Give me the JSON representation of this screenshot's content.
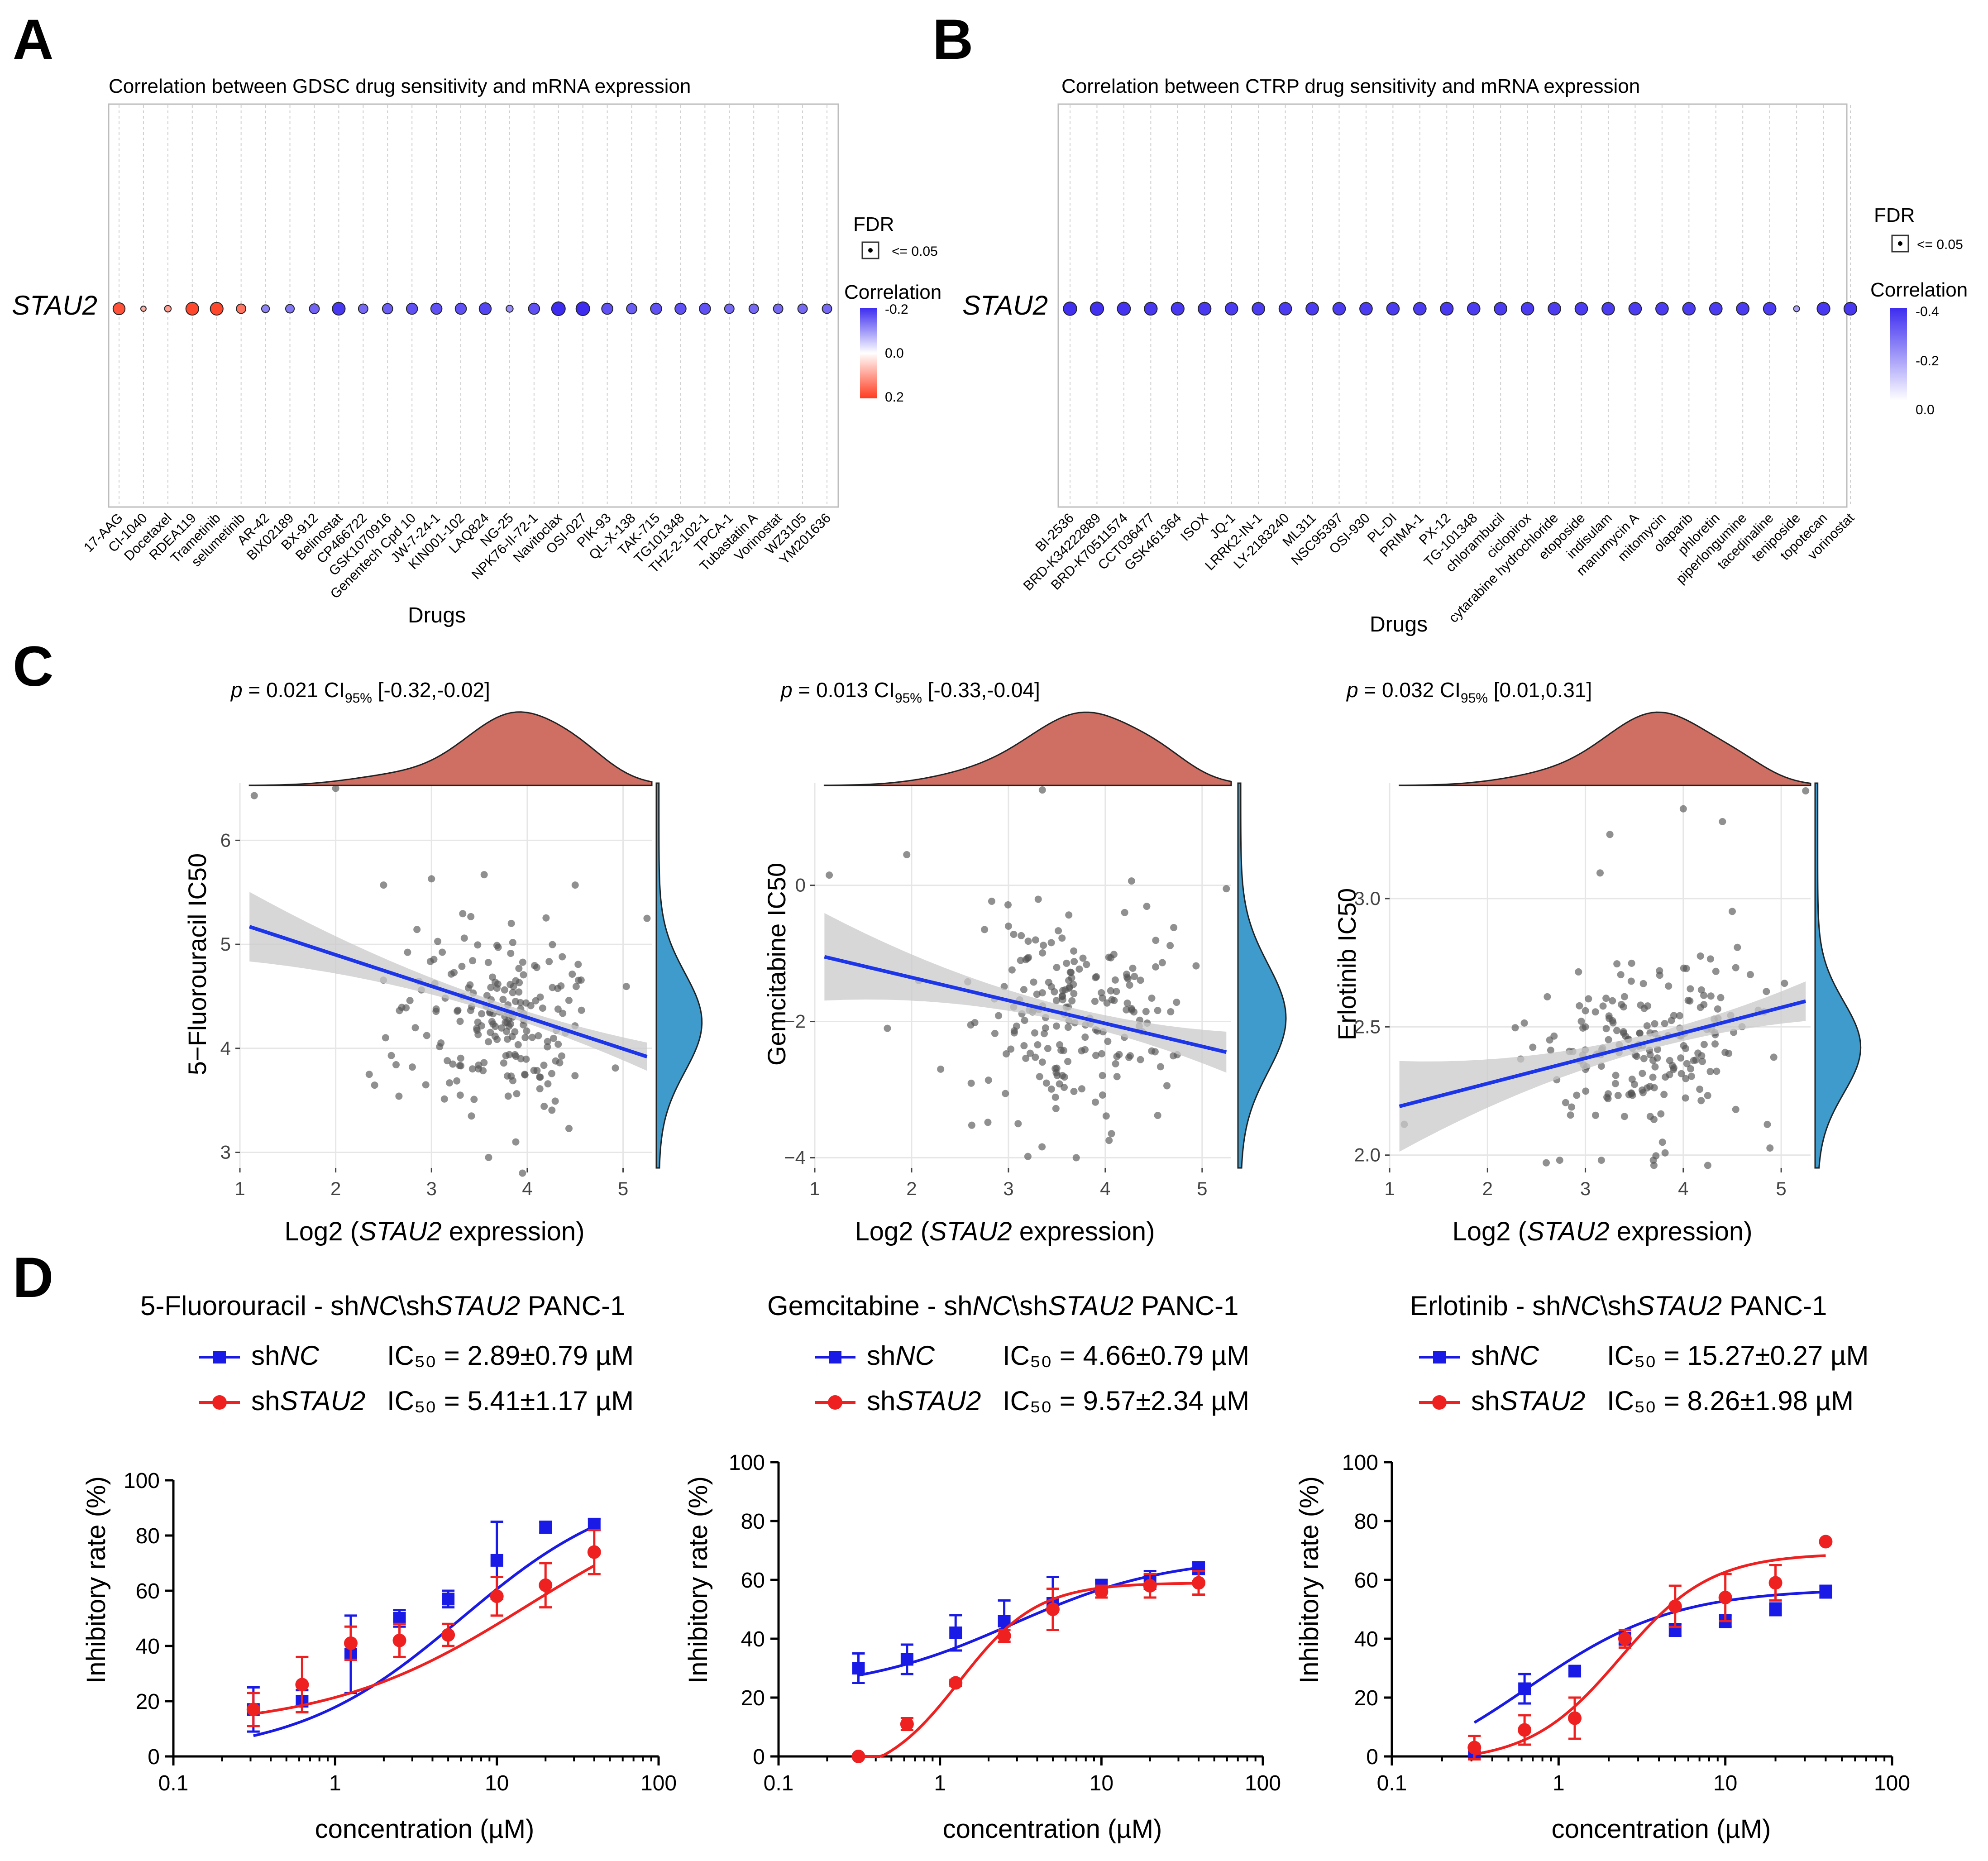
{
  "colors": {
    "blue": "#1a1ae6",
    "red": "#ef2020",
    "corr_pos": "#ff3b1f",
    "corr_neg": "#3d2cf0",
    "ridge": "#cf6e63",
    "ridge_side": "#3e9bcb",
    "fit_line": "#1d35e8",
    "band": "#c9c9c9",
    "grid": "#e6e6e6",
    "point": "#555555"
  },
  "panel_labels": [
    "A",
    "B",
    "C",
    "D"
  ],
  "panelA": {
    "title": "Correlation between GDSC drug sensitivity and mRNA expression",
    "gene": "STAU2",
    "xlabel": "Drugs",
    "fdr_title": "FDR",
    "fdr_label": "<= 0.05",
    "corr_title": "Correlation",
    "corr_ticks": [
      "-0.2",
      "0.0",
      "0.2"
    ],
    "drugs": [
      "17-AAG",
      "CI-1040",
      "Docetaxel",
      "RDEA119",
      "Trametinib",
      "selumetinib",
      "AR-42",
      "BIX02189",
      "BX-912",
      "Belinostat",
      "CP466722",
      "GSK1070916",
      "Genentech Cpd 10",
      "JW-7-24-1",
      "KIN001-102",
      "LAQ824",
      "NG-25",
      "NPK76-II-72-1",
      "Navitoclax",
      "OSI-027",
      "PIK-93",
      "QL-X-138",
      "TAK-715",
      "TG101348",
      "THZ-2-102-1",
      "TPCA-1",
      "Tubastatin A",
      "Vorinostat",
      "WZ3105",
      "YM201636"
    ],
    "correlations": [
      0.18,
      0.02,
      0.05,
      0.2,
      0.2,
      0.12,
      -0.08,
      -0.1,
      -0.13,
      -0.2,
      -0.12,
      -0.14,
      -0.16,
      -0.16,
      -0.16,
      -0.18,
      -0.06,
      -0.16,
      -0.22,
      -0.22,
      -0.16,
      -0.14,
      -0.16,
      -0.16,
      -0.16,
      -0.12,
      -0.12,
      -0.12,
      -0.12,
      -0.12
    ],
    "fdr_significant": [
      true,
      true,
      true,
      true,
      true,
      true,
      true,
      true,
      true,
      true,
      true,
      true,
      true,
      true,
      true,
      true,
      true,
      true,
      true,
      true,
      true,
      true,
      true,
      true,
      true,
      true,
      true,
      true,
      true,
      true
    ]
  },
  "panelB": {
    "title": "Correlation between CTRP drug sensitivity and mRNA expression",
    "gene": "STAU2",
    "xlabel": "Drugs",
    "fdr_title": "FDR",
    "fdr_label": "<= 0.05",
    "corr_title": "Correlation",
    "corr_ticks": [
      "-0.4",
      "-0.2",
      "0.0"
    ],
    "drugs": [
      "BI-2536",
      "BRD-K34222889",
      "BRD-K70511574",
      "CCT036477",
      "GSK461364",
      "ISOX",
      "JQ-1",
      "LRRK2-IN-1",
      "LY-2183240",
      "ML311",
      "NSC95397",
      "OSI-930",
      "PL-DI",
      "PRIMA-1",
      "PX-12",
      "TG-101348",
      "chlorambucil",
      "ciclopirox",
      "cytarabine hydrochloride",
      "etoposide",
      "indisulam",
      "manumycin A",
      "mitomycin",
      "olaparib",
      "phloretin",
      "piperlongumine",
      "tacedinaline",
      "teniposide",
      "topotecan",
      "vorinostat"
    ],
    "correlations": [
      -0.33,
      -0.33,
      -0.32,
      -0.31,
      -0.31,
      -0.31,
      -0.3,
      -0.3,
      -0.3,
      -0.3,
      -0.3,
      -0.3,
      -0.3,
      -0.3,
      -0.31,
      -0.3,
      -0.3,
      -0.3,
      -0.3,
      -0.3,
      -0.3,
      -0.3,
      -0.3,
      -0.3,
      -0.3,
      -0.3,
      -0.3,
      -0.05,
      -0.31,
      -0.31
    ]
  },
  "panelC": {
    "xlabel_prefix": "Log2 (",
    "xlabel_gene": "STAU2",
    "xlabel_suffix": " expression)",
    "x_ticks": [
      "1",
      "2",
      "3",
      "4",
      "5"
    ],
    "plots": [
      {
        "ylabel": "5−Fluorouracil IC50",
        "p_prefix": "p",
        "p_text": " = 0.021  CI",
        "ci_sub": "95%",
        "ci_text": " [-0.32,-0.02]",
        "ylim": [
          2.85,
          6.55
        ],
        "yticks": [
          3,
          4,
          5,
          6
        ],
        "line": [
          [
            1.1,
            5.17
          ],
          [
            5.25,
            3.92
          ]
        ],
        "band_width": 0.22,
        "center": [
          3.8,
          4.25
        ],
        "spread": [
          0.5,
          0.45
        ],
        "outliers": [
          [
            1.15,
            6.43
          ],
          [
            2.0,
            6.5
          ],
          [
            2.5,
            5.57
          ],
          [
            3.0,
            5.63
          ],
          [
            3.55,
            5.67
          ],
          [
            4.5,
            5.57
          ],
          [
            5.25,
            5.25
          ],
          [
            2.35,
            3.75
          ],
          [
            3.88,
            3.1
          ],
          [
            3.95,
            2.8
          ],
          [
            2.8,
            3.82
          ],
          [
            3.3,
            3.55
          ]
        ],
        "ridge_peak": 3.9,
        "ridge_sd": 0.55
      },
      {
        "ylabel": "Gemcitabine IC50",
        "p_prefix": "p",
        "p_text": " = 0.013  CI",
        "ci_sub": "95%",
        "ci_text": " [-0.33,-0.04]",
        "ylim": [
          -4.15,
          1.5
        ],
        "yticks": [
          -4,
          -2,
          0
        ],
        "line": [
          [
            1.1,
            -1.05
          ],
          [
            5.25,
            -2.45
          ]
        ],
        "band_width": 0.45,
        "center": [
          3.7,
          -1.95
        ],
        "spread": [
          0.55,
          0.75
        ],
        "outliers": [
          [
            1.15,
            0.15
          ],
          [
            1.95,
            0.45
          ],
          [
            3.35,
            1.4
          ],
          [
            5.25,
            -0.05
          ],
          [
            3.0,
            -0.6
          ],
          [
            3.7,
            -4.0
          ],
          [
            3.1,
            -3.5
          ],
          [
            2.3,
            -2.7
          ],
          [
            1.75,
            -2.1
          ],
          [
            4.2,
            -0.4
          ]
        ],
        "ridge_peak": 3.8,
        "ridge_sd": 0.6
      },
      {
        "ylabel": "Erlotinib IC50",
        "p_prefix": "p",
        "p_text": " = 0.032  CI",
        "ci_sub": "95%",
        "ci_text": " [0.01,0.31]",
        "ylim": [
          1.95,
          3.45
        ],
        "yticks": [
          2.0,
          2.5,
          3.0
        ],
        "line": [
          [
            1.1,
            2.19
          ],
          [
            5.25,
            2.6
          ]
        ],
        "band_width": 0.12,
        "center": [
          3.75,
          2.42
        ],
        "spread": [
          0.55,
          0.17
        ],
        "outliers": [
          [
            1.15,
            2.12
          ],
          [
            3.25,
            3.25
          ],
          [
            3.15,
            3.1
          ],
          [
            4.0,
            3.35
          ],
          [
            4.4,
            3.3
          ],
          [
            5.25,
            3.42
          ],
          [
            3.7,
            1.96
          ],
          [
            4.25,
            1.96
          ],
          [
            2.6,
            1.97
          ],
          [
            4.5,
            2.95
          ]
        ],
        "ridge_peak": 3.75,
        "ridge_sd": 0.55
      }
    ]
  },
  "panelD": {
    "xlabel": "concentration (µM)",
    "ylabel": "Inhibitory rate (%)",
    "x_ticks": [
      "0.1",
      "1",
      "10",
      "100"
    ],
    "y_ticks": [
      "0",
      "20",
      "40",
      "60",
      "80",
      "100"
    ],
    "concentrations": [
      0.3125,
      0.625,
      1.25,
      2.5,
      5,
      10,
      20,
      40
    ],
    "plots": [
      {
        "title_pre": "5-Fluorouracil - sh",
        "title_nc": "NC",
        "title_mid": "\\sh",
        "title_gene": "STAU2",
        "title_post": " PANC-1",
        "legend": [
          {
            "pre": "sh",
            "it": "NC",
            "ic": "IC₅₀ = 2.89±0.79 µM"
          },
          {
            "pre": "sh",
            "it": "STAU2",
            "ic": "IC₅₀ = 5.41±1.17 µM"
          }
        ],
        "series": [
          {
            "name": "shNC",
            "values": [
              17,
              20,
              37,
              50,
              57,
              71,
              83,
              84
            ],
            "errors": [
              8,
              4,
              14,
              3,
              3,
              14,
              2,
              2
            ],
            "fit": {
              "bottom": 0,
              "top": 100,
              "logec50": 0.78,
              "hill": 0.85
            }
          },
          {
            "name": "shSTAU2",
            "values": [
              17,
              26,
              41,
              42,
              44,
              58,
              62,
              74
            ],
            "errors": [
              6,
              10,
              6,
              6,
              4,
              7,
              8,
              8
            ],
            "fit": {
              "bottom": 10,
              "top": 100,
              "logec50": 1.2,
              "hill": 0.7
            }
          }
        ]
      },
      {
        "title_pre": "Gemcitabine - sh",
        "title_nc": "NC",
        "title_mid": "\\sh",
        "title_gene": "STAU2",
        "title_post": " PANC-1",
        "legend": [
          {
            "pre": "sh",
            "it": "NC",
            "ic": "IC₅₀ = 4.66±0.79 µM"
          },
          {
            "pre": "sh",
            "it": "STAU2",
            "ic": "IC₅₀ = 9.57±2.34 µM"
          }
        ],
        "series": [
          {
            "name": "shNC",
            "values": [
              30,
              33,
              42,
              46,
              52,
              58,
              60,
              64
            ],
            "errors": [
              5,
              5,
              6,
              7,
              9,
              2,
              3,
              2
            ],
            "fit": {
              "bottom": 22,
              "top": 68,
              "logec50": 0.45,
              "hill": 0.9
            }
          },
          {
            "name": "shSTAU2",
            "values": [
              0,
              11,
              25,
              41,
              50,
              56,
              58,
              59
            ],
            "errors": [
              0,
              2,
              1,
              2,
              7,
              2,
              4,
              4
            ],
            "fit": {
              "bottom": -8,
              "top": 59,
              "logec50": 0.12,
              "hill": 1.8
            }
          }
        ]
      },
      {
        "title_pre": "Erlotinib - sh",
        "title_nc": "NC",
        "title_mid": "\\sh",
        "title_gene": "STAU2",
        "title_post": " PANC-1",
        "legend": [
          {
            "pre": "sh",
            "it": "NC",
            "ic": "IC₅₀ = 15.27±0.27 µM"
          },
          {
            "pre": "sh",
            "it": "STAU2",
            "ic": "IC₅₀ = 8.26±1.98 µM"
          }
        ],
        "series": [
          {
            "name": "shNC",
            "values": [
              1,
              23,
              29,
              40,
              43,
              46,
              50,
              56
            ],
            "errors": [
              2,
              5,
              1,
              2,
              2,
              2,
              2,
              2
            ],
            "fit": {
              "bottom": -10,
              "top": 57,
              "logec50": -0.18,
              "hill": 1.0
            }
          },
          {
            "name": "shSTAU2",
            "values": [
              3,
              9,
              13,
              40,
              51,
              54,
              59,
              73
            ],
            "errors": [
              4,
              5,
              7,
              3,
              7,
              8,
              6,
              0
            ],
            "fit": {
              "bottom": -2,
              "top": 69,
              "logec50": 0.37,
              "hill": 1.6
            }
          }
        ]
      }
    ]
  },
  "chart_data": [
    {
      "type": "scatter",
      "title": "Correlation between GDSC drug sensitivity and mRNA expression",
      "xlabel": "Drugs",
      "ylabel": "STAU2",
      "legend": [
        "FDR <= 0.05",
        "Correlation"
      ]
    },
    {
      "type": "scatter",
      "title": "Correlation between CTRP drug sensitivity and mRNA expression",
      "xlabel": "Drugs",
      "ylabel": "STAU2",
      "legend": [
        "FDR <= 0.05",
        "Correlation"
      ]
    },
    {
      "type": "scatter",
      "title": "5-Fluorouracil IC50 vs Log2 (STAU2 expression)",
      "xlabel": "Log2 (STAU2 expression)",
      "ylabel": "5−Fluorouracil IC50",
      "xlim": [
        1,
        5.3
      ],
      "ylim": [
        2.85,
        6.55
      ],
      "regression": {
        "p": 0.021,
        "ci95": [
          -0.32,
          -0.02
        ]
      }
    },
    {
      "type": "scatter",
      "title": "Gemcitabine IC50 vs Log2 (STAU2 expression)",
      "xlabel": "Log2 (STAU2 expression)",
      "ylabel": "Gemcitabine IC50",
      "xlim": [
        1,
        5.3
      ],
      "ylim": [
        -4.15,
        1.5
      ],
      "regression": {
        "p": 0.013,
        "ci95": [
          -0.33,
          -0.04
        ]
      }
    },
    {
      "type": "scatter",
      "title": "Erlotinib IC50 vs Log2 (STAU2 expression)",
      "xlabel": "Log2 (STAU2 expression)",
      "ylabel": "Erlotinib IC50",
      "xlim": [
        1,
        5.3
      ],
      "ylim": [
        1.95,
        3.45
      ],
      "regression": {
        "p": 0.032,
        "ci95": [
          0.01,
          0.31
        ]
      }
    },
    {
      "type": "line",
      "title": "5-Fluorouracil - shNC\\shSTAU2 PANC-1",
      "x": [
        0.3125,
        0.625,
        1.25,
        2.5,
        5,
        10,
        20,
        40
      ],
      "series": [
        {
          "name": "shNC",
          "values": [
            17,
            20,
            37,
            50,
            57,
            71,
            83,
            84
          ]
        },
        {
          "name": "shSTAU2",
          "values": [
            17,
            26,
            41,
            42,
            44,
            58,
            62,
            74
          ]
        }
      ],
      "xlabel": "concentration (µM)",
      "ylabel": "Inhibitory rate (%)",
      "ylim": [
        0,
        100
      ]
    },
    {
      "type": "line",
      "title": "Gemcitabine - shNC\\shSTAU2 PANC-1",
      "x": [
        0.3125,
        0.625,
        1.25,
        2.5,
        5,
        10,
        20,
        40
      ],
      "series": [
        {
          "name": "shNC",
          "values": [
            30,
            33,
            42,
            46,
            52,
            58,
            60,
            64
          ]
        },
        {
          "name": "shSTAU2",
          "values": [
            0,
            11,
            25,
            41,
            50,
            56,
            58,
            59
          ]
        }
      ],
      "xlabel": "concentration (µM)",
      "ylabel": "Inhibitory rate (%)",
      "ylim": [
        0,
        100
      ]
    },
    {
      "type": "line",
      "title": "Erlotinib - shNC\\shSTAU2 PANC-1",
      "x": [
        0.3125,
        0.625,
        1.25,
        2.5,
        5,
        10,
        20,
        40
      ],
      "series": [
        {
          "name": "shNC",
          "values": [
            1,
            23,
            29,
            40,
            43,
            46,
            50,
            56
          ]
        },
        {
          "name": "shSTAU2",
          "values": [
            3,
            9,
            13,
            40,
            51,
            54,
            59,
            73
          ]
        }
      ],
      "xlabel": "concentration (µM)",
      "ylabel": "Inhibitory rate (%)",
      "ylim": [
        0,
        100
      ]
    }
  ]
}
